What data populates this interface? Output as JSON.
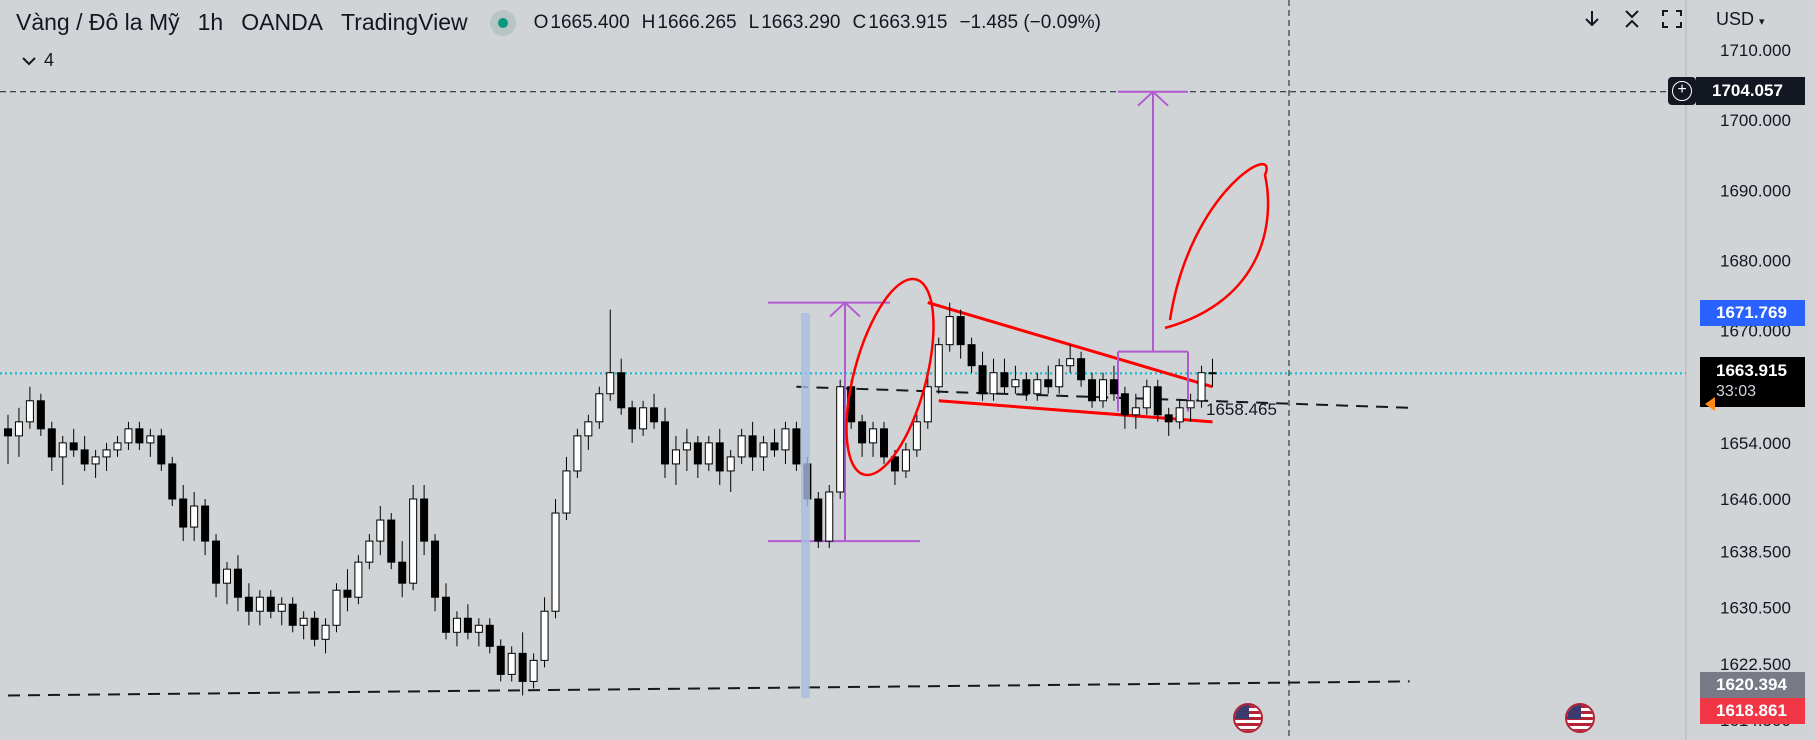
{
  "header": {
    "symbol": "Vàng / Đô la Mỹ",
    "interval": "1h",
    "broker": "OANDA",
    "platform": "TradingView",
    "status_dot_color": "#089981",
    "ohlc": {
      "o_label": "O",
      "o_value": "1665.400",
      "h_label": "H",
      "h_value": "1666.265",
      "l_label": "L",
      "l_value": "1663.290",
      "c_label": "C",
      "c_value": "1663.915",
      "change": "−1.485 (−0.09%)"
    },
    "collapse_count": "4"
  },
  "toolbar": {
    "icons": [
      "arrow-down-icon",
      "collapse-icon",
      "fullscreen-icon"
    ],
    "currency": "USD"
  },
  "price_scale": {
    "ticks": [
      "1710.000",
      "1700.000",
      "1690.000",
      "1680.000",
      "1670.000",
      "1654.000",
      "1646.000",
      "1638.500",
      "1630.500",
      "1622.500",
      "1614.500"
    ],
    "crosshair_price": "1704.057",
    "blue_tag": "1671.769",
    "last_price": "1663.915",
    "countdown": "33:03",
    "grey_tag": "1620.394",
    "red_tag": "1618.861",
    "blue_tag_color": "#2962ff",
    "red_tag_color": "#f23645"
  },
  "annotations": {
    "level_label": "1658.465",
    "pattern_color": "#ff0000",
    "projection_color": "#b05ad0"
  },
  "chart_data": {
    "type": "candlestick",
    "title": "",
    "xlabel": "",
    "ylabel": "",
    "ylim": [
      1614.5,
      1710.0
    ],
    "grid": false,
    "candles": [
      [
        1656,
        1658,
        1651,
        1655
      ],
      [
        1655,
        1659,
        1652,
        1657
      ],
      [
        1657,
        1662,
        1656,
        1660
      ],
      [
        1660,
        1661,
        1655,
        1656
      ],
      [
        1656,
        1657,
        1650,
        1652
      ],
      [
        1652,
        1655,
        1648,
        1654
      ],
      [
        1654,
        1656,
        1652,
        1653
      ],
      [
        1653,
        1655,
        1650,
        1651
      ],
      [
        1651,
        1653,
        1649,
        1652
      ],
      [
        1652,
        1654,
        1650,
        1653
      ],
      [
        1653,
        1655,
        1652,
        1654
      ],
      [
        1654,
        1657,
        1653,
        1656
      ],
      [
        1656,
        1657,
        1653,
        1654
      ],
      [
        1654,
        1656,
        1652,
        1655
      ],
      [
        1655,
        1656,
        1650,
        1651
      ],
      [
        1651,
        1652,
        1645,
        1646
      ],
      [
        1646,
        1648,
        1640,
        1642
      ],
      [
        1642,
        1647,
        1640,
        1645
      ],
      [
        1645,
        1646,
        1638,
        1640
      ],
      [
        1640,
        1641,
        1632,
        1634
      ],
      [
        1634,
        1637,
        1631,
        1636
      ],
      [
        1636,
        1638,
        1630,
        1632
      ],
      [
        1632,
        1634,
        1628,
        1630
      ],
      [
        1630,
        1633,
        1628,
        1632
      ],
      [
        1632,
        1633,
        1629,
        1630
      ],
      [
        1630,
        1632,
        1628,
        1631
      ],
      [
        1631,
        1632,
        1627,
        1628
      ],
      [
        1628,
        1630,
        1626,
        1629
      ],
      [
        1629,
        1630,
        1625,
        1626
      ],
      [
        1626,
        1629,
        1624,
        1628
      ],
      [
        1628,
        1634,
        1627,
        1633
      ],
      [
        1633,
        1636,
        1630,
        1632
      ],
      [
        1632,
        1638,
        1631,
        1637
      ],
      [
        1637,
        1641,
        1636,
        1640
      ],
      [
        1640,
        1645,
        1638,
        1643
      ],
      [
        1643,
        1644,
        1636,
        1637
      ],
      [
        1637,
        1640,
        1632,
        1634
      ],
      [
        1634,
        1648,
        1633,
        1646
      ],
      [
        1646,
        1648,
        1638,
        1640
      ],
      [
        1640,
        1641,
        1630,
        1632
      ],
      [
        1632,
        1634,
        1626,
        1627
      ],
      [
        1627,
        1630,
        1625,
        1629
      ],
      [
        1629,
        1631,
        1626,
        1627
      ],
      [
        1627,
        1629,
        1625,
        1628
      ],
      [
        1628,
        1629,
        1624,
        1625
      ],
      [
        1625,
        1626,
        1620,
        1621
      ],
      [
        1621,
        1625,
        1620,
        1624
      ],
      [
        1624,
        1627,
        1618,
        1620
      ],
      [
        1620,
        1624,
        1619,
        1623
      ],
      [
        1623,
        1632,
        1622,
        1630
      ],
      [
        1630,
        1646,
        1629,
        1644
      ],
      [
        1644,
        1652,
        1643,
        1650
      ],
      [
        1650,
        1656,
        1649,
        1655
      ],
      [
        1655,
        1658,
        1653,
        1657
      ],
      [
        1657,
        1662,
        1656,
        1661
      ],
      [
        1661,
        1673,
        1660,
        1664
      ],
      [
        1664,
        1666,
        1658,
        1659
      ],
      [
        1659,
        1660,
        1654,
        1656
      ],
      [
        1656,
        1660,
        1655,
        1659
      ],
      [
        1659,
        1661,
        1656,
        1657
      ],
      [
        1657,
        1659,
        1649,
        1651
      ],
      [
        1651,
        1655,
        1648,
        1653
      ],
      [
        1653,
        1656,
        1650,
        1654
      ],
      [
        1654,
        1655,
        1649,
        1651
      ],
      [
        1651,
        1655,
        1650,
        1654
      ],
      [
        1654,
        1656,
        1648,
        1650
      ],
      [
        1650,
        1653,
        1647,
        1652
      ],
      [
        1652,
        1656,
        1651,
        1655
      ],
      [
        1655,
        1657,
        1650,
        1652
      ],
      [
        1652,
        1655,
        1650,
        1654
      ],
      [
        1654,
        1656,
        1652,
        1653
      ],
      [
        1653,
        1657,
        1651,
        1656
      ],
      [
        1656,
        1657,
        1650,
        1651
      ],
      [
        1651,
        1652,
        1645,
        1646
      ],
      [
        1646,
        1647,
        1639,
        1640
      ],
      [
        1640,
        1648,
        1639,
        1647
      ],
      [
        1647,
        1663,
        1646,
        1662
      ],
      [
        1662,
        1663,
        1656,
        1657
      ],
      [
        1657,
        1658,
        1652,
        1654
      ],
      [
        1654,
        1657,
        1652,
        1656
      ],
      [
        1656,
        1657,
        1651,
        1652
      ],
      [
        1652,
        1653,
        1648,
        1650
      ],
      [
        1650,
        1654,
        1649,
        1653
      ],
      [
        1653,
        1658,
        1652,
        1657
      ],
      [
        1657,
        1664,
        1656,
        1662
      ],
      [
        1662,
        1669,
        1661,
        1668
      ],
      [
        1668,
        1674,
        1667,
        1672
      ],
      [
        1672,
        1673,
        1666,
        1668
      ],
      [
        1668,
        1669,
        1664,
        1665
      ],
      [
        1665,
        1667,
        1660,
        1661
      ],
      [
        1661,
        1666,
        1660,
        1664
      ],
      [
        1664,
        1666,
        1661,
        1662
      ],
      [
        1662,
        1665,
        1661,
        1663
      ],
      [
        1663,
        1664,
        1660,
        1661
      ],
      [
        1661,
        1664,
        1660,
        1663
      ],
      [
        1663,
        1665,
        1661,
        1662
      ],
      [
        1662,
        1666,
        1661,
        1665
      ],
      [
        1665,
        1668,
        1664,
        1666
      ],
      [
        1666,
        1667,
        1662,
        1663
      ],
      [
        1663,
        1664,
        1659,
        1660
      ],
      [
        1660,
        1664,
        1659,
        1663
      ],
      [
        1663,
        1665,
        1660,
        1661
      ],
      [
        1661,
        1662,
        1656,
        1658
      ],
      [
        1658,
        1661,
        1656,
        1659
      ],
      [
        1659,
        1663,
        1658,
        1662
      ],
      [
        1662,
        1663,
        1657,
        1658
      ],
      [
        1658,
        1659,
        1655,
        1657
      ],
      [
        1657,
        1660,
        1656,
        1659
      ],
      [
        1659,
        1661,
        1657,
        1660
      ],
      [
        1660,
        1665,
        1659,
        1664
      ],
      [
        1664,
        1666,
        1662,
        1664
      ]
    ],
    "lines": {
      "red_upper": [
        [
          84,
          1674
        ],
        [
          110,
          1662
        ]
      ],
      "red_lower": [
        [
          85,
          1660
        ],
        [
          110,
          1657
        ]
      ],
      "dashed_upper": [
        [
          72,
          1662
        ],
        [
          128,
          1659
        ]
      ],
      "dashed_lower": [
        [
          0,
          1618
        ],
        [
          128,
          1620
        ]
      ],
      "crosshair_price": 1704.057,
      "last_price": 1663.915
    }
  }
}
